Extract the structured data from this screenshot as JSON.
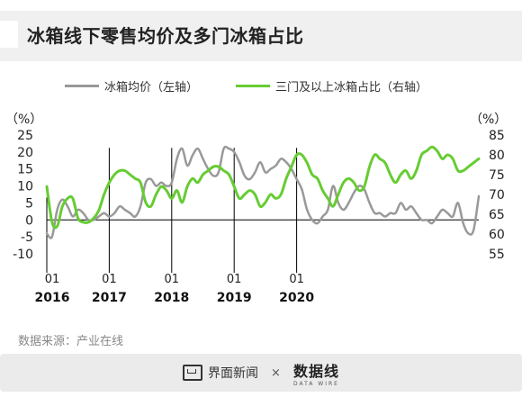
{
  "header": {
    "title": "冰箱线下零售均价及多门冰箱占比"
  },
  "source": {
    "text": "数据来源：产业在线"
  },
  "footer": {
    "brand1": "界面新闻",
    "times": "×",
    "brand2": "数据线",
    "brand2_sub": "DATA WIRE"
  },
  "colors": {
    "grey_series": "#999999",
    "green_series": "#66cc33",
    "axis": "#000000"
  },
  "chart_data": {
    "type": "line",
    "left_axis": {
      "unit": "（%）",
      "ylim": [
        -10,
        25
      ],
      "ticks": [
        25,
        20,
        15,
        10,
        5,
        0,
        -5,
        -10
      ]
    },
    "right_axis": {
      "unit": "（%）",
      "ylim": [
        55,
        85
      ],
      "ticks": [
        85,
        80,
        75,
        70,
        65,
        60,
        55
      ]
    },
    "x_month_labels": [
      "01",
      "01",
      "01",
      "01",
      "01"
    ],
    "x_year_labels": [
      "2016",
      "2017",
      "2018",
      "2019",
      "2020"
    ],
    "x_range": [
      "2016-01",
      "2020-05"
    ],
    "series": [
      {
        "name": "冰箱均价（左轴）",
        "axis": "left",
        "color": "#999999",
        "values": [
          -4,
          -5,
          3,
          6,
          4,
          1,
          3,
          2,
          0,
          0,
          1,
          2,
          1,
          2,
          4,
          3,
          2,
          1,
          4,
          11,
          12,
          10,
          11,
          10,
          11,
          18,
          21,
          16,
          19,
          21,
          18,
          15,
          13,
          14,
          21,
          21,
          20,
          17,
          13,
          12,
          14,
          17,
          14,
          15,
          16,
          18,
          17,
          15,
          12,
          9,
          3,
          0,
          -1,
          1,
          3,
          10,
          5,
          3,
          5,
          8,
          10,
          9,
          5,
          2,
          2,
          1,
          2,
          2,
          5,
          3,
          4,
          2,
          0,
          0,
          -1,
          1,
          3,
          2,
          1,
          5,
          -1,
          -4,
          -3,
          7
        ]
      },
      {
        "name": "三门及以上冰箱占比（右轴）",
        "axis": "right",
        "color": "#66cc33",
        "values": [
          72,
          63,
          62,
          67,
          69,
          69,
          64,
          63,
          63,
          64,
          66,
          70,
          73,
          75,
          76,
          76,
          75,
          74,
          73,
          68,
          67,
          70,
          72,
          71,
          69,
          71,
          68,
          72,
          74,
          73,
          75,
          76,
          77,
          77,
          76,
          75,
          72,
          69,
          70,
          71,
          70,
          67,
          68,
          70,
          69,
          70,
          74,
          77,
          80,
          80,
          78,
          75,
          74,
          71,
          69,
          67,
          70,
          73,
          74,
          73,
          71,
          72,
          77,
          80,
          79,
          78,
          75,
          73,
          75,
          76,
          74,
          76,
          80,
          81,
          82,
          81,
          79,
          80,
          79,
          76,
          76,
          77,
          78,
          79
        ]
      }
    ]
  }
}
